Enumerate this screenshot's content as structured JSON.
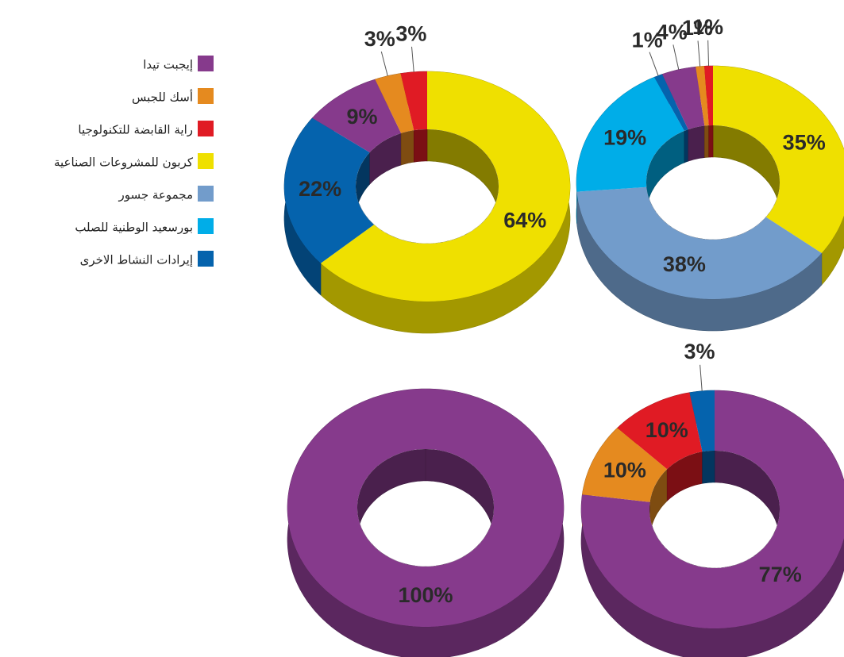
{
  "legend": {
    "categories": [
      "إيجبت تيدا",
      "أسك للجبس",
      "راية القابضة للتكنولوجيا",
      "كربون للمشروعات الصناعية",
      "مجموعة جسور",
      "بورسعيد الوطنية للصلب",
      "إيرادات النشاط الاخرى"
    ],
    "colors": [
      "#863a8c",
      "#e58a1f",
      "#e01b24",
      "#efe000",
      "#729ccb",
      "#00ade8",
      "#0563ad"
    ]
  },
  "chart_data": [
    {
      "type": "pie",
      "values": [
        9,
        3,
        3,
        64,
        null,
        null,
        22
      ],
      "value_labels": [
        "9%",
        "3%",
        "3%",
        "64%",
        null,
        null,
        "22%"
      ]
    },
    {
      "type": "pie",
      "values": [
        4,
        1,
        1,
        35,
        38,
        19,
        1
      ],
      "value_labels": [
        "4%",
        "1%",
        "1%",
        "35%",
        "38%",
        "19%",
        "1%"
      ]
    },
    {
      "type": "pie",
      "values": [
        100,
        null,
        null,
        null,
        null,
        null,
        null
      ],
      "value_labels": [
        "100%",
        null,
        null,
        null,
        null,
        null,
        null
      ]
    },
    {
      "type": "pie",
      "values": [
        77,
        10,
        10,
        null,
        null,
        null,
        3
      ],
      "value_labels": [
        "77%",
        "10%",
        "10%",
        null,
        null,
        null,
        "3%"
      ]
    }
  ]
}
